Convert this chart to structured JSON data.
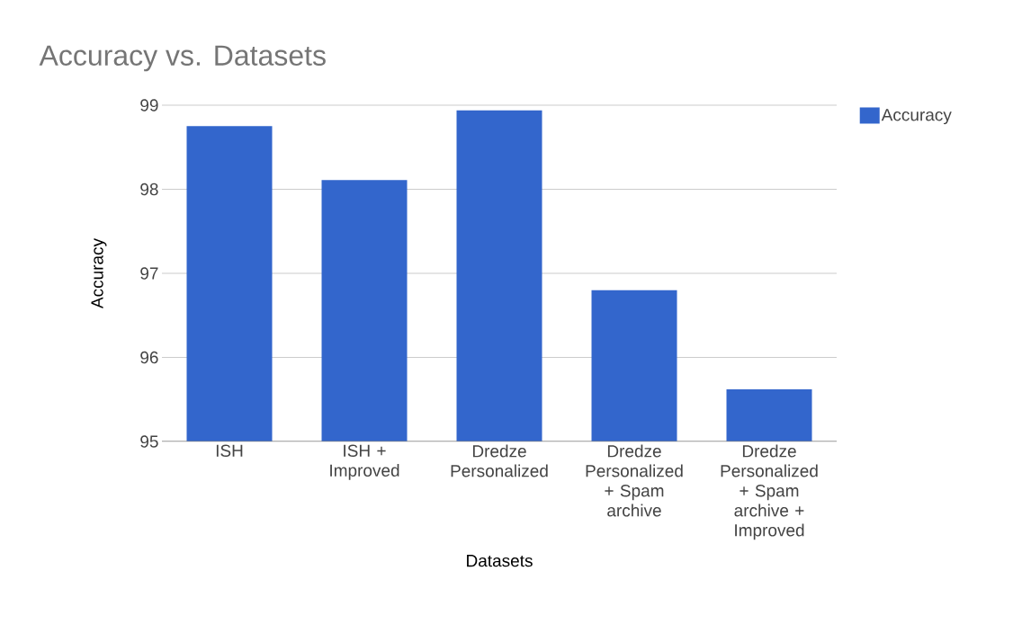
{
  "chart_data": {
    "type": "bar",
    "title": "Accuracy vs. Datasets",
    "xlabel": "Datasets",
    "ylabel": "Accuracy",
    "categories": [
      "ISH",
      "ISH + Improved",
      "Dredze Personalized",
      "Dredze Personalized + Spam archive",
      "Dredze Personalized + Spam archive + Improved"
    ],
    "series": [
      {
        "name": "Accuracy",
        "color": "#3366cc",
        "values": [
          98.75,
          98.11,
          98.94,
          96.8,
          95.62
        ]
      }
    ],
    "ylim": [
      95,
      99
    ],
    "yticks": [
      95,
      96,
      97,
      98,
      99
    ],
    "grid": "y",
    "legend": "top right"
  }
}
